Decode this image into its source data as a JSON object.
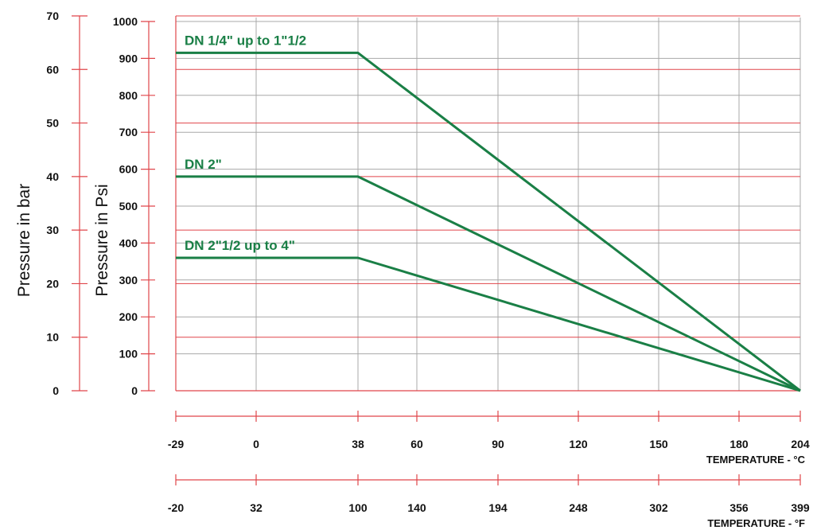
{
  "chart_data": {
    "type": "line",
    "y_bar_label": "Pressure in bar",
    "y_psi_label": "Pressure in Psi",
    "x_c_title": "TEMPERATURE - °C",
    "x_f_title": "TEMPERATURE - °F",
    "bar_ticks": [
      "0",
      "10",
      "20",
      "30",
      "40",
      "50",
      "60",
      "70"
    ],
    "psi_ticks": [
      "0",
      "100",
      "200",
      "300",
      "400",
      "500",
      "600",
      "700",
      "800",
      "900",
      "1000"
    ],
    "celsius_ticks": [
      "-29",
      "0",
      "38",
      "60",
      "90",
      "120",
      "150",
      "180",
      "204"
    ],
    "fahrenheit_ticks": [
      "-20",
      "32",
      "100",
      "140",
      "194",
      "248",
      "302",
      "356",
      "399"
    ],
    "ylim_psi": [
      0,
      1000
    ],
    "ylim_bar": [
      0,
      70
    ],
    "grid": true,
    "series": [
      {
        "name": "DN 1/4\" up to 1\"1/2",
        "x_celsius": [
          -29,
          38,
          204
        ],
        "y_psi": [
          915,
          915,
          0
        ]
      },
      {
        "name": "DN 2\"",
        "x_celsius": [
          -29,
          38,
          204
        ],
        "y_psi": [
          580,
          580,
          0
        ]
      },
      {
        "name": "DN 2\"1/2 up to 4\"",
        "x_celsius": [
          -29,
          38,
          204
        ],
        "y_psi": [
          360,
          360,
          0
        ]
      }
    ],
    "colors": {
      "line": "#1a7f46",
      "grid_red": "#e0454a",
      "grid_gray": "#a8a8a8"
    }
  }
}
